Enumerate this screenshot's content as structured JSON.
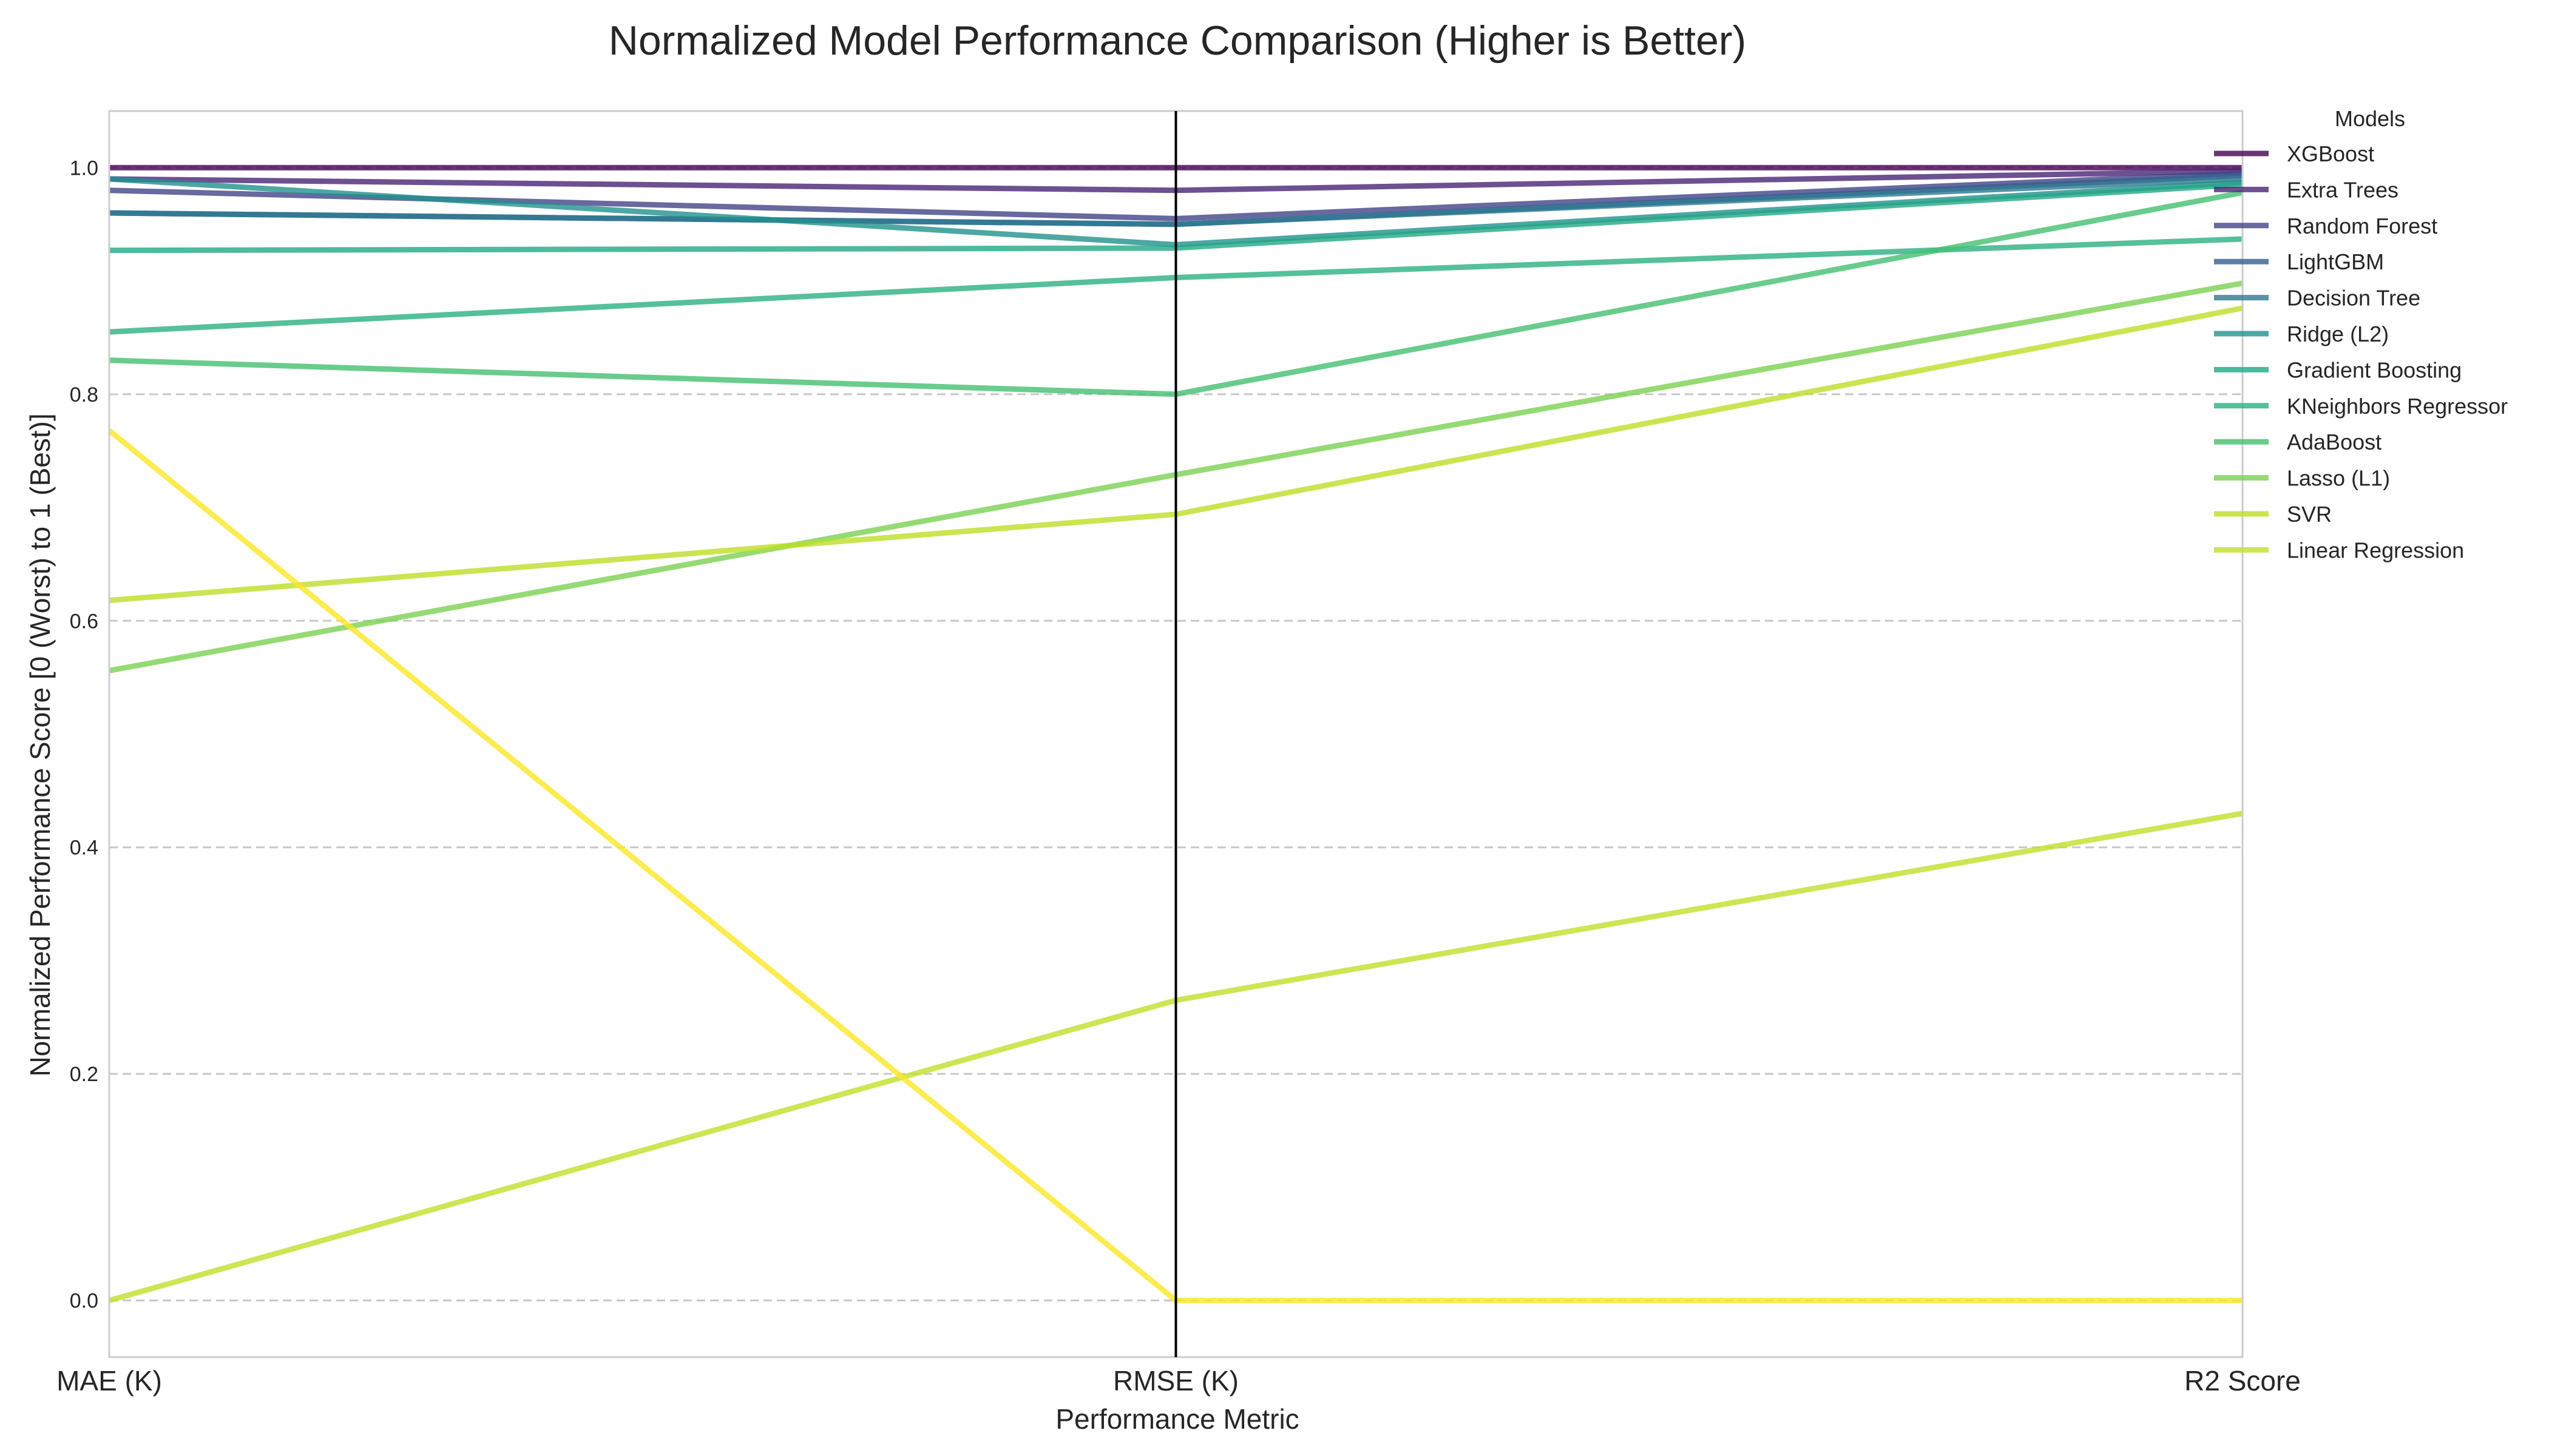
{
  "chart_data": {
    "type": "line",
    "title": "Normalized Model Performance Comparison (Higher is Better)",
    "xlabel": "Performance Metric",
    "ylabel": "Normalized Performance Score [0 (Worst) to 1 (Best)]",
    "categories": [
      "MAE (K)",
      "RMSE (K)",
      "R2 Score"
    ],
    "ylim": [
      -0.05,
      1.05
    ],
    "yticks": [
      "0.0",
      "0.2",
      "0.4",
      "0.6",
      "0.8",
      "1.0"
    ],
    "ytick_values": [
      0.0,
      0.2,
      0.4,
      0.6,
      0.8,
      1.0
    ],
    "grid": true,
    "legend_title": "Models",
    "legend_position": "right",
    "series": [
      {
        "name": "XGBoost",
        "values": [
          1.0,
          1.0,
          1.0
        ],
        "color": "#440154"
      },
      {
        "name": "Extra Trees",
        "values": [
          0.99,
          0.98,
          0.997
        ],
        "color": "#482475"
      },
      {
        "name": "Random Forest",
        "values": [
          0.98,
          0.955,
          0.995
        ],
        "color": "#414487"
      },
      {
        "name": "LightGBM",
        "values": [
          0.96,
          0.95,
          0.993
        ],
        "color": "#355f8d"
      },
      {
        "name": "Decision Tree",
        "values": [
          0.96,
          0.95,
          0.99
        ],
        "color": "#2a788e"
      },
      {
        "name": "Ridge (L2)",
        "values": [
          0.99,
          0.932,
          0.987
        ],
        "color": "#21918c"
      },
      {
        "name": "Gradient Boosting",
        "values": [
          0.927,
          0.929,
          0.985
        ],
        "color": "#22a884"
      },
      {
        "name": "KNeighbors Regressor",
        "values": [
          0.855,
          0.903,
          0.937
        ],
        "color": "#2ab07f"
      },
      {
        "name": "AdaBoost",
        "values": [
          0.83,
          0.8,
          0.978
        ],
        "color": "#44bf70"
      },
      {
        "name": "Lasso (L1)",
        "values": [
          0.556,
          0.729,
          0.898
        ],
        "color": "#7ad151"
      },
      {
        "name": "SVR",
        "values": [
          0.618,
          0.694,
          0.876
        ],
        "color": "#bddf26"
      },
      {
        "name": "Linear Regression",
        "values": [
          0.0,
          0.265,
          0.43
        ],
        "color": "#c2de29"
      },
      {
        "name": "",
        "values": [
          0.768,
          0.0,
          0.0
        ],
        "color": "#fde725"
      }
    ]
  }
}
